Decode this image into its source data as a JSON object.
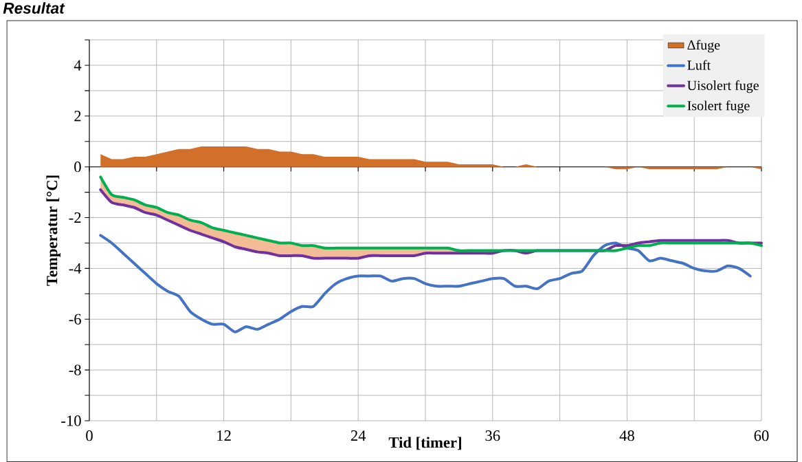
{
  "chart_data": {
    "type": "line",
    "title": "Resultat",
    "xlabel": "Tid [timer]",
    "ylabel": "Temperatur [°C]",
    "x": [
      1,
      2,
      3,
      4,
      5,
      6,
      7,
      8,
      9,
      10,
      11,
      12,
      13,
      14,
      15,
      16,
      17,
      18,
      19,
      20,
      21,
      22,
      23,
      24,
      25,
      26,
      27,
      28,
      29,
      30,
      31,
      32,
      33,
      34,
      35,
      36,
      37,
      38,
      39,
      40,
      41,
      42,
      43,
      44,
      45,
      46,
      47,
      48,
      49,
      50,
      51,
      52,
      53,
      54,
      55,
      56,
      57,
      58,
      59,
      60
    ],
    "series": [
      {
        "name": "Δfuge",
        "type": "area",
        "color": "#d2702a",
        "values": [
          0.5,
          0.3,
          0.3,
          0.4,
          0.4,
          0.5,
          0.6,
          0.7,
          0.7,
          0.8,
          0.8,
          0.8,
          0.8,
          0.8,
          0.7,
          0.7,
          0.6,
          0.6,
          0.5,
          0.5,
          0.4,
          0.4,
          0.4,
          0.4,
          0.3,
          0.3,
          0.3,
          0.3,
          0.3,
          0.2,
          0.2,
          0.2,
          0.1,
          0.1,
          0.1,
          0.1,
          0,
          0,
          0.1,
          0,
          0,
          0,
          0,
          0,
          0,
          0,
          -0.1,
          -0.1,
          0,
          -0.1,
          -0.1,
          -0.1,
          -0.1,
          -0.1,
          -0.1,
          -0.1,
          0,
          0,
          0,
          -0.1
        ]
      },
      {
        "name": "Luft",
        "color": "#4472c4",
        "values": [
          -2.7,
          -3.0,
          -3.4,
          -3.8,
          -4.2,
          -4.6,
          -4.9,
          -5.1,
          -5.7,
          -6.0,
          -6.2,
          -6.2,
          -6.5,
          -6.3,
          -6.4,
          -6.2,
          -6.0,
          -5.7,
          -5.5,
          -5.5,
          -5.0,
          -4.6,
          -4.4,
          -4.3,
          -4.3,
          -4.3,
          -4.5,
          -4.4,
          -4.4,
          -4.6,
          -4.7,
          -4.7,
          -4.7,
          -4.6,
          -4.5,
          -4.4,
          -4.4,
          -4.7,
          -4.7,
          -4.8,
          -4.5,
          -4.4,
          -4.2,
          -4.1,
          -3.5,
          -3.1,
          -3.0,
          -3.2,
          -3.3,
          -3.7,
          -3.6,
          -3.7,
          -3.8,
          -4.0,
          -4.1,
          -4.1,
          -3.9,
          -4.0,
          -4.3,
          null
        ]
      },
      {
        "name": "Uisolert fuge",
        "color": "#7030a0",
        "values": [
          -0.9,
          -1.4,
          -1.5,
          -1.6,
          -1.8,
          -1.9,
          -2.1,
          -2.3,
          -2.5,
          -2.65,
          -2.8,
          -2.95,
          -3.15,
          -3.25,
          -3.35,
          -3.4,
          -3.5,
          -3.5,
          -3.5,
          -3.6,
          -3.6,
          -3.6,
          -3.6,
          -3.6,
          -3.5,
          -3.5,
          -3.5,
          -3.5,
          -3.5,
          -3.4,
          -3.4,
          -3.4,
          -3.4,
          -3.4,
          -3.4,
          -3.4,
          -3.3,
          -3.3,
          -3.4,
          -3.3,
          null,
          -3.3,
          null,
          null,
          -3.3,
          -3.3,
          -3.1,
          -3.1,
          -3.0,
          -2.95,
          -2.9,
          -2.9,
          -2.9,
          -2.9,
          -2.9,
          -2.9,
          -2.9,
          -3.0,
          -3.0,
          -3.0
        ]
      },
      {
        "name": "Isolert fuge",
        "color": "#00b050",
        "values": [
          -0.4,
          -1.1,
          -1.2,
          -1.3,
          -1.5,
          -1.6,
          -1.8,
          -1.9,
          -2.1,
          -2.2,
          -2.4,
          -2.5,
          -2.6,
          -2.7,
          -2.8,
          -2.9,
          -3.0,
          -3.0,
          -3.1,
          -3.1,
          -3.2,
          -3.2,
          -3.2,
          -3.2,
          -3.2,
          -3.2,
          -3.2,
          -3.2,
          -3.2,
          -3.2,
          -3.2,
          -3.2,
          -3.3,
          -3.3,
          -3.3,
          -3.3,
          -3.3,
          -3.3,
          -3.3,
          -3.3,
          -3.3,
          -3.3,
          -3.3,
          -3.3,
          -3.3,
          -3.3,
          -3.3,
          -3.2,
          -3.1,
          -3.1,
          -3.0,
          -3.0,
          -3.0,
          -3.0,
          -3.0,
          -3.0,
          -3.0,
          -3.0,
          -3.0,
          -3.1
        ],
        "lower": [
          -0.9,
          -1.4,
          -1.5,
          -1.6,
          -1.8,
          -1.9,
          -2.1,
          -2.3,
          -2.5,
          -2.65,
          -2.8,
          -2.95,
          -3.15,
          -3.25,
          -3.35,
          -3.4,
          -3.5,
          -3.5,
          -3.5,
          -3.6,
          -3.6,
          -3.6,
          -3.6,
          -3.6,
          -3.5,
          -3.5,
          -3.5,
          -3.5,
          -3.5,
          -3.4,
          -3.4,
          -3.4,
          -3.4,
          -3.4,
          -3.4,
          -3.4,
          null,
          null,
          null,
          null,
          null,
          null,
          null,
          null,
          null,
          null,
          null,
          null,
          null,
          null,
          null,
          null,
          null,
          null,
          null,
          null,
          null,
          null,
          null,
          null
        ],
        "upper": [
          -0.4,
          -1.1,
          -1.2,
          -1.3,
          -1.5,
          -1.6,
          -1.8,
          -1.9,
          -2.1,
          -2.2,
          -2.4,
          -2.5,
          -2.6,
          -2.7,
          -2.8,
          -2.9,
          -3.0,
          -3.0,
          -3.1,
          -3.1,
          -3.2,
          -3.2,
          -3.2,
          -3.2,
          -3.2,
          -3.2,
          -3.2,
          -3.2,
          -3.2,
          -3.2,
          -3.2,
          -3.2,
          -3.3,
          -3.3,
          -3.3,
          -3.3,
          null,
          null,
          null,
          null,
          null,
          null,
          null,
          null,
          null,
          null,
          null,
          null,
          null,
          null,
          null,
          null,
          null,
          null,
          null,
          null,
          null,
          null,
          null,
          null
        ]
      }
    ],
    "xlim": [
      0,
      60
    ],
    "xticks": [
      0,
      {
        "value": 6,
        "label": null
      },
      12,
      {
        "value": 18,
        "label": null
      },
      24,
      {
        "value": 30,
        "label": null
      },
      36,
      {
        "value": 42,
        "label": null
      },
      48,
      {
        "value": 54,
        "label": null
      },
      60
    ],
    "ylim": [
      -10,
      5
    ],
    "yticks": [
      -10,
      {
        "value": -9,
        "label": null
      },
      -8,
      {
        "value": -7,
        "label": null
      },
      -6,
      {
        "value": -5,
        "label": null
      },
      -4,
      {
        "value": -3,
        "label": null
      },
      -2,
      {
        "value": -1,
        "label": null
      },
      0,
      {
        "value": 1,
        "label": null
      },
      2,
      {
        "value": 3,
        "label": null
      },
      4,
      {
        "value": 5,
        "label": null
      }
    ],
    "grid": true,
    "legend": "top right"
  }
}
